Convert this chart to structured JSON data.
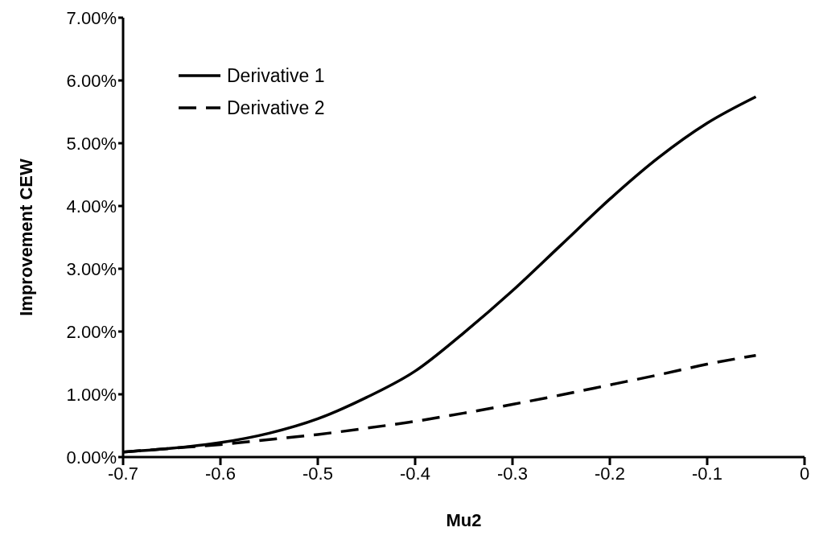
{
  "chart_data": {
    "type": "line",
    "xlabel": "Mu2",
    "ylabel": "Improvement CEW",
    "x": [
      -0.7,
      -0.65,
      -0.6,
      -0.55,
      -0.5,
      -0.45,
      -0.4,
      -0.35,
      -0.3,
      -0.25,
      -0.2,
      -0.15,
      -0.1,
      -0.05
    ],
    "series": [
      {
        "name": "Derivative 1",
        "color": "#000000",
        "line_style": "solid",
        "values": [
          0.08,
          0.14,
          0.23,
          0.38,
          0.61,
          0.95,
          1.37,
          1.98,
          2.65,
          3.38,
          4.11,
          4.77,
          5.32,
          5.74
        ]
      },
      {
        "name": "Derivative 2",
        "color": "#000000",
        "line_style": "dashed",
        "values": [
          0.08,
          0.14,
          0.2,
          0.28,
          0.36,
          0.46,
          0.57,
          0.7,
          0.84,
          0.99,
          1.15,
          1.31,
          1.48,
          1.62
        ]
      }
    ],
    "xlim": [
      -0.7,
      0
    ],
    "xticks": [
      -0.7,
      -0.6,
      -0.5,
      -0.4,
      -0.3,
      -0.2,
      -0.1,
      0
    ],
    "ylim": [
      0,
      7
    ],
    "yticks": [
      {
        "value": 0,
        "label": "0.00%"
      },
      {
        "value": 1,
        "label": "1.00%"
      },
      {
        "value": 2,
        "label": "2.00%"
      },
      {
        "value": 3,
        "label": "3.00%"
      },
      {
        "value": 4,
        "label": "4.00%"
      },
      {
        "value": 5,
        "label": "5.00%"
      },
      {
        "value": 6,
        "label": "6.00%"
      },
      {
        "value": 7,
        "label": "7.00%"
      }
    ],
    "grid": false,
    "legend": "top left",
    "marker": "none"
  }
}
